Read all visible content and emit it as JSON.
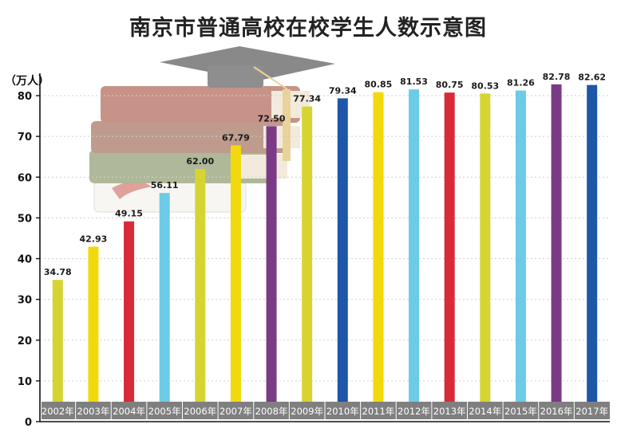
{
  "chart_data": {
    "type": "bar",
    "title": "南京市普通高校在校学生人数示意图",
    "unit_label": "（万人）",
    "ylim": [
      0,
      80
    ],
    "yticks": [
      "0",
      "10",
      "20",
      "30",
      "40",
      "50",
      "60",
      "70",
      "80"
    ],
    "grid": true,
    "categories": [
      "2002年",
      "2003年",
      "2004年",
      "2005年",
      "2006年",
      "2007年",
      "2008年",
      "2009年",
      "2010年",
      "2011年",
      "2012年",
      "2013年",
      "2014年",
      "2015年",
      "2016年",
      "2017年"
    ],
    "values": [
      34.78,
      42.93,
      49.15,
      56.11,
      62.0,
      67.79,
      72.5,
      77.34,
      79.34,
      80.85,
      81.53,
      80.75,
      80.53,
      81.26,
      82.78,
      82.62
    ],
    "value_labels": [
      "34.78",
      "42.93",
      "49.15",
      "56.11",
      "62.00",
      "67.79",
      "72.50",
      "77.34",
      "79.34",
      "80.85",
      "81.53",
      "80.75",
      "80.53",
      "81.26",
      "82.78",
      "82.62"
    ],
    "bar_colors": [
      "#d6d432",
      "#f2d90d",
      "#d92a3a",
      "#6ccbe6",
      "#d6d432",
      "#f2d90d",
      "#7b3a86",
      "#d6d432",
      "#1e56a8",
      "#f2d90d",
      "#6ccbe6",
      "#d92a3a",
      "#d6d432",
      "#6ccbe6",
      "#7b3a86",
      "#1e56a8"
    ],
    "category_band_color": "#7f7f7f"
  },
  "illustration": {
    "name": "books-and-graduation-cap",
    "colors": {
      "book_red": "#9b3b2a",
      "book_green": "#6f7f45",
      "pages": "#e9dcc2",
      "cap": "#2a2a2a",
      "tassel": "#d8b04a"
    }
  }
}
